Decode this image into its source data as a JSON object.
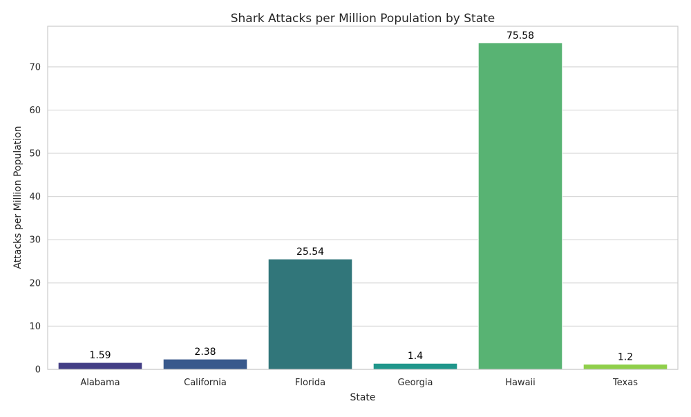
{
  "chart_data": {
    "type": "bar",
    "title": "Shark Attacks per Million Population by State",
    "xlabel": "State",
    "ylabel": "Attacks per Million Population",
    "categories": [
      "Alabama",
      "California",
      "Florida",
      "Georgia",
      "Hawaii",
      "Texas"
    ],
    "values": [
      1.59,
      2.38,
      25.54,
      1.4,
      75.58,
      1.2
    ],
    "value_labels": [
      "1.59",
      "2.38",
      "25.54",
      "1.4",
      "75.58",
      "1.2"
    ],
    "colors": [
      "#433e85",
      "#38598c",
      "#31767a",
      "#1f968b",
      "#58b373",
      "#8fcf4a"
    ],
    "ylim": [
      0,
      79.4
    ],
    "yticks": [
      0,
      10,
      20,
      30,
      40,
      50,
      60,
      70
    ],
    "grid": true,
    "legend": "none"
  }
}
